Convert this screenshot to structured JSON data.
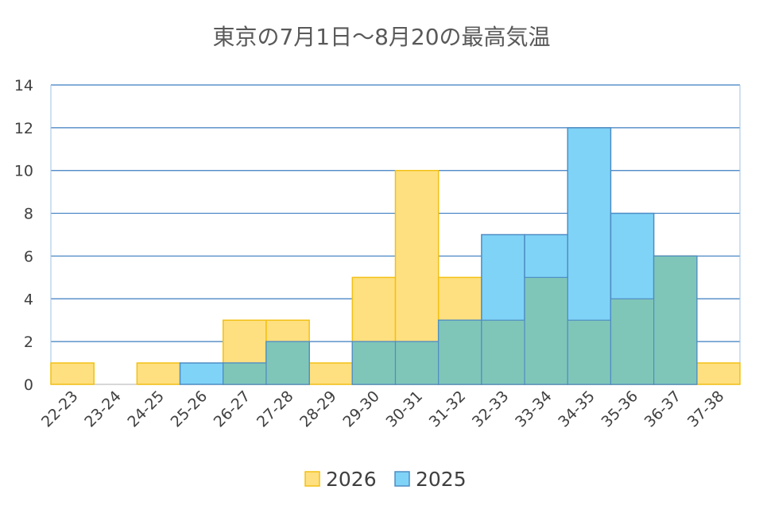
{
  "chart_data": {
    "type": "bar",
    "title": "東京の7月1日〜8月20の最高気温",
    "categories": [
      "22-23",
      "23-24",
      "24-25",
      "25-26",
      "26-27",
      "27-28",
      "28-29",
      "29-30",
      "30-31",
      "31-32",
      "32-33",
      "33-34",
      "34-35",
      "35-36",
      "36-37",
      "37-38"
    ],
    "series": [
      {
        "name": "2026",
        "color": "#FFE080",
        "stroke": "#F2C014",
        "values": [
          1,
          0,
          1,
          0,
          3,
          3,
          1,
          5,
          10,
          5,
          3,
          5,
          3,
          4,
          6,
          1
        ]
      },
      {
        "name": "2025",
        "color": "#7FD3F7",
        "stroke": "#4F8DC4",
        "values": [
          0,
          0,
          0,
          1,
          1,
          2,
          0,
          2,
          2,
          3,
          7,
          7,
          12,
          8,
          6,
          0
        ]
      }
    ],
    "overlap_color": "#80C6B8",
    "ylim": [
      0,
      14
    ],
    "yticks": [
      0,
      2,
      4,
      6,
      8,
      10,
      12,
      14
    ],
    "grid": true,
    "legend_position": "bottom"
  }
}
